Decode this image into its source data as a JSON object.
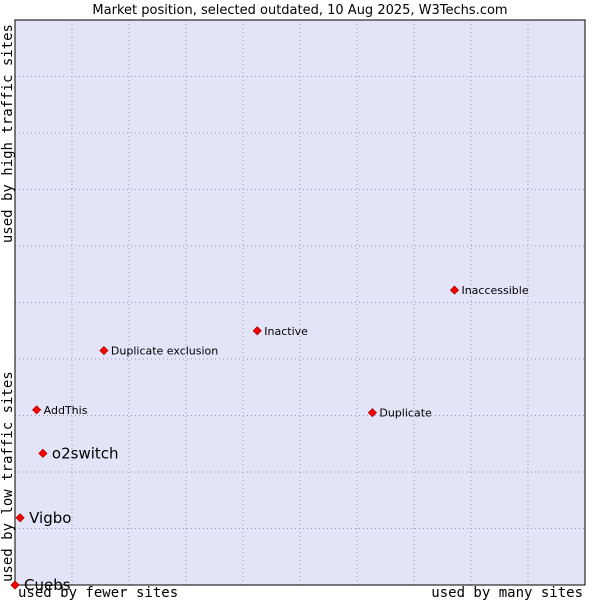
{
  "chart_data": {
    "type": "scatter",
    "title": "Market position, selected outdated, 10 Aug 2025, W3Techs.com",
    "xlabel_left": "used by fewer sites",
    "xlabel_right": "used by many sites",
    "ylabel_bottom": "used by low traffic sites",
    "ylabel_top": "used by high traffic sites",
    "xlim": [
      0,
      100
    ],
    "ylim": [
      0,
      100
    ],
    "grid": true,
    "colors": {
      "plot_background": "#e4e4f8",
      "grid": "#9a9ab0",
      "marker": "#ff0000",
      "marker_edge": "#aa0000"
    },
    "points": [
      {
        "label": "Inaccessible",
        "x": 77.1,
        "y": 52.2,
        "emphasis": false
      },
      {
        "label": "Inactive",
        "x": 42.5,
        "y": 45.0,
        "emphasis": false
      },
      {
        "label": "Duplicate exclusion",
        "x": 15.6,
        "y": 41.5,
        "emphasis": false
      },
      {
        "label": "AddThis",
        "x": 3.8,
        "y": 31.0,
        "emphasis": false
      },
      {
        "label": "Duplicate",
        "x": 62.7,
        "y": 30.5,
        "emphasis": false
      },
      {
        "label": "o2switch",
        "x": 4.9,
        "y": 23.3,
        "emphasis": true
      },
      {
        "label": "Vigbo",
        "x": 0.9,
        "y": 11.9,
        "emphasis": true
      },
      {
        "label": "Cuebs",
        "x": 0.0,
        "y": 0.0,
        "emphasis": true
      }
    ]
  }
}
